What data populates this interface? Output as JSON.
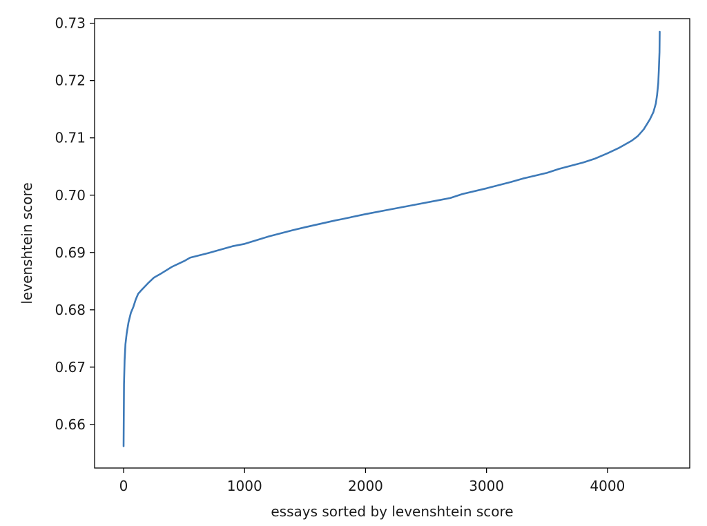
{
  "chart_data": {
    "type": "line",
    "title": "",
    "xlabel": "essays sorted by levenshtein score",
    "ylabel": "levenshtein score",
    "xlim": [
      -240,
      4680
    ],
    "ylim": [
      0.6524,
      0.7308
    ],
    "xticks": [
      0,
      1000,
      2000,
      3000,
      4000
    ],
    "xtick_labels": [
      "0",
      "1000",
      "2000",
      "3000",
      "4000"
    ],
    "yticks": [
      0.66,
      0.67,
      0.68,
      0.69,
      0.7,
      0.71,
      0.72,
      0.73
    ],
    "ytick_labels": [
      "0.66",
      "0.67",
      "0.68",
      "0.69",
      "0.70",
      "0.71",
      "0.72",
      "0.73"
    ],
    "grid": false,
    "legend": "none",
    "series": [
      {
        "color": "#3e7ab8",
        "x": [
          0,
          3,
          8,
          15,
          25,
          40,
          60,
          80,
          100,
          120,
          150,
          200,
          250,
          300,
          400,
          500,
          550,
          700,
          900,
          1000,
          1200,
          1400,
          1500,
          1750,
          1800,
          2000,
          2200,
          2400,
          2600,
          2700,
          2800,
          3000,
          3200,
          3300,
          3500,
          3600,
          3800,
          3900,
          4000,
          4100,
          4200,
          4250,
          4300,
          4350,
          4380,
          4400,
          4410,
          4420,
          4425,
          4430,
          4432
        ],
        "y": [
          0.6562,
          0.667,
          0.6712,
          0.674,
          0.6758,
          0.6778,
          0.6795,
          0.6805,
          0.6818,
          0.6828,
          0.6835,
          0.6846,
          0.6856,
          0.6862,
          0.6875,
          0.6885,
          0.6891,
          0.6899,
          0.6911,
          0.6915,
          0.6928,
          0.6939,
          0.6944,
          0.6956,
          0.6958,
          0.6967,
          0.6975,
          0.6983,
          0.6991,
          0.6995,
          0.7002,
          0.7012,
          0.7023,
          0.7029,
          0.7039,
          0.7046,
          0.7057,
          0.7064,
          0.7073,
          0.7083,
          0.7095,
          0.7103,
          0.7115,
          0.7132,
          0.7145,
          0.716,
          0.7175,
          0.7195,
          0.722,
          0.725,
          0.7285
        ]
      }
    ]
  }
}
